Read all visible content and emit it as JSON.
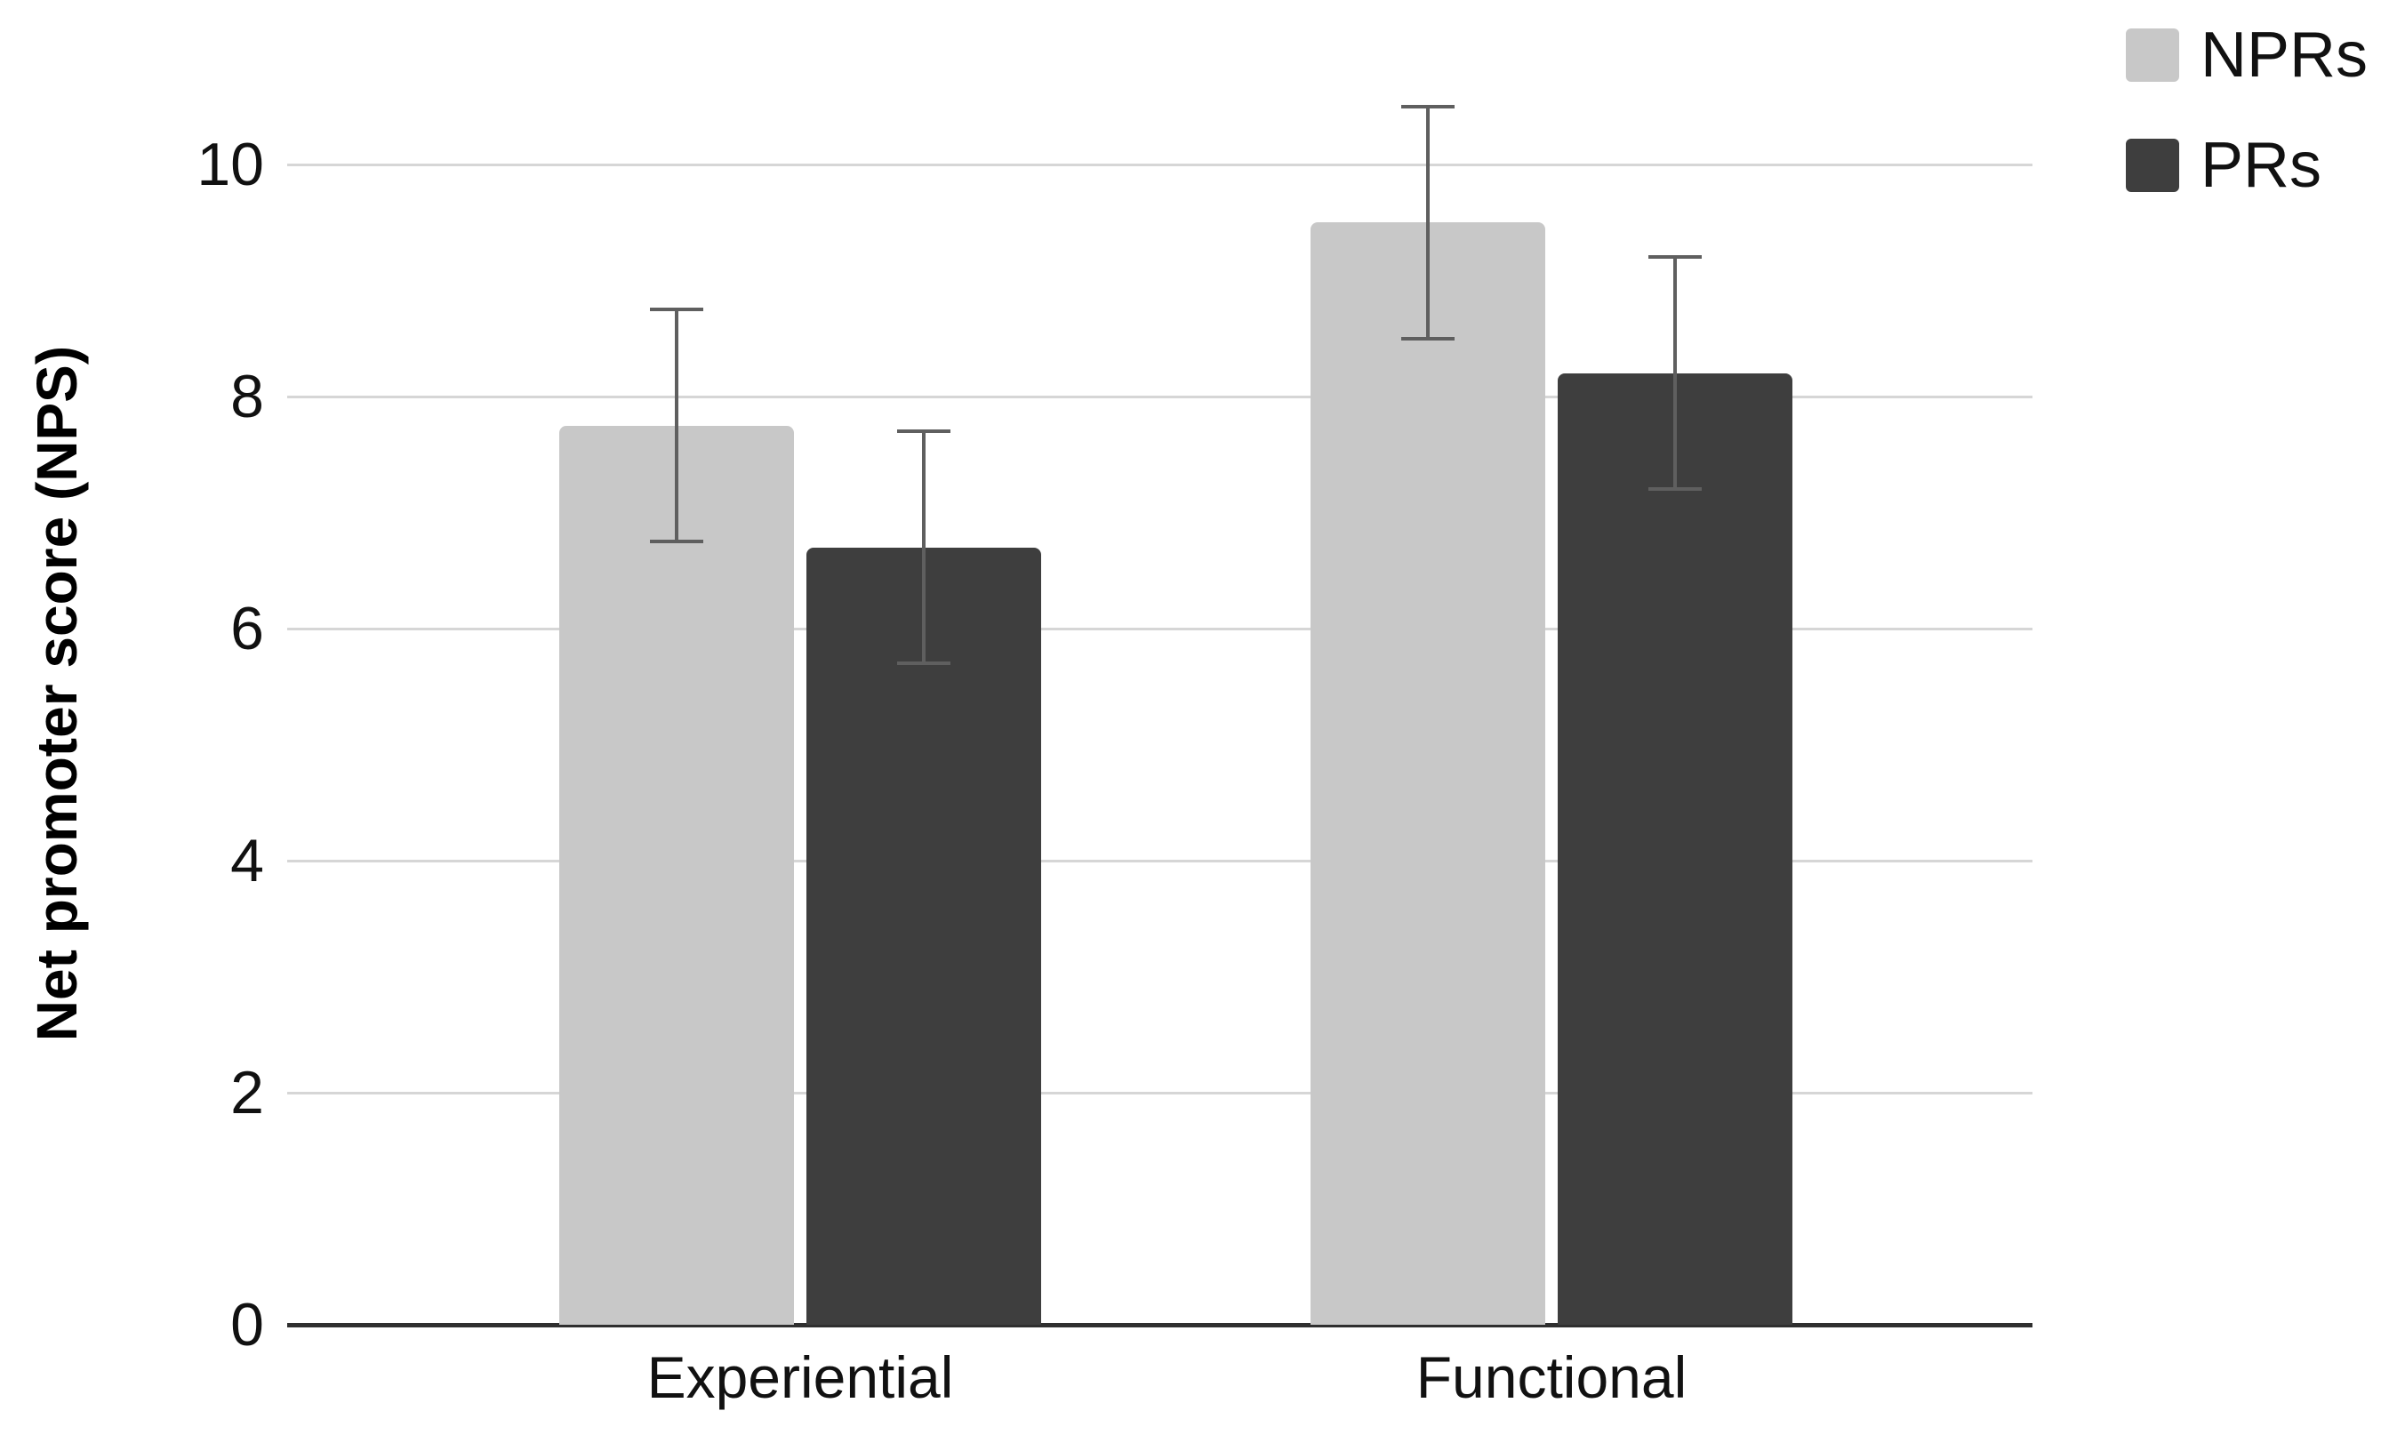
{
  "chart_data": {
    "type": "bar",
    "title": "",
    "categories": [
      "Experiential",
      "Functional"
    ],
    "series": [
      {
        "name": "NPRs",
        "color": "#c8c8c8",
        "values": [
          7.75,
          9.5
        ],
        "error_low": [
          6.75,
          8.5
        ],
        "error_high": [
          8.75,
          10.5
        ]
      },
      {
        "name": "PRs",
        "color": "#3e3e3e",
        "values": [
          6.7,
          8.2
        ],
        "error_low": [
          5.7,
          7.2
        ],
        "error_high": [
          7.7,
          9.2
        ]
      }
    ],
    "xlabel": "",
    "ylabel": "Net promoter score (NPS)",
    "yticks": [
      0,
      2,
      4,
      6,
      8,
      10
    ],
    "ylim": [
      0,
      10
    ],
    "grid": "horizontal",
    "legend_position": "top-right",
    "colors": {
      "gridline": "#d6d6d6",
      "axis_line": "#2f2f2f",
      "error_bar": "#5f5f5f",
      "text": "#111111",
      "background": "#ffffff"
    }
  }
}
